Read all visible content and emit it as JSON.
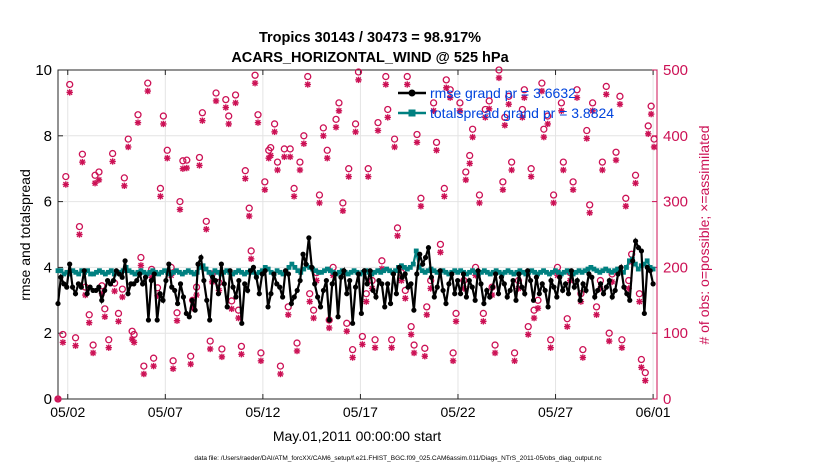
{
  "chart_data": {
    "type": "line",
    "title_line1": "Tropics 30143 / 30473 = 98.917%",
    "title_line2": "ACARS_HORIZONTAL_WIND @ 525 hPa",
    "xlabel": "May.01,2011 00:00:00 start",
    "ylabel_left": "rmse and totalspread",
    "ylabel_right": "# of obs: o=possible; ×=assimilated",
    "footer": "data file: /Users/raeder/DAI/ATM_forcXX/CAM6_setup/f.e21.FHIST_BGC.f09_025.CAM6assim.011/Diags_NTrS_2011-05/obs_diag_output.nc",
    "xlim_days": [
      0.5,
      31.2
    ],
    "ylim_left": [
      0,
      10
    ],
    "ylim_right": [
      0,
      500
    ],
    "x_ticks": [
      {
        "day": 1,
        "label": "05/02"
      },
      {
        "day": 6,
        "label": "05/07"
      },
      {
        "day": 11,
        "label": "05/12"
      },
      {
        "day": 16,
        "label": "05/17"
      },
      {
        "day": 21,
        "label": "05/22"
      },
      {
        "day": 26,
        "label": "05/27"
      },
      {
        "day": 31,
        "label": "06/01"
      }
    ],
    "y_ticks_left": [
      "0",
      "2",
      "4",
      "6",
      "8",
      "10"
    ],
    "y_ticks_right": [
      "0",
      "100",
      "200",
      "300",
      "400",
      "500"
    ],
    "colors": {
      "rmse": "#000000",
      "spread": "#008080",
      "obs": "#cc1155",
      "legend_text": "#0044dd"
    },
    "legend": [
      {
        "label": "rmse grand pr = 3.6632"
      },
      {
        "label": "totalspread grand pr = 3.8824"
      }
    ],
    "series": [
      {
        "name": "rmse grand pr = 3.6632",
        "axis": "left",
        "values": [
          2.9,
          3.7,
          3.5,
          3.4,
          4.1,
          3.4,
          3.2,
          3.5,
          3.4,
          3.9,
          3.2,
          3.4,
          3.3,
          3.3,
          3.4,
          3.0,
          3.3,
          3.6,
          3.5,
          3.6,
          3.9,
          3.8,
          3.7,
          4.2,
          3.2,
          3.5,
          3.5,
          3.6,
          3.8,
          3.5,
          3.7,
          2.4,
          3.6,
          3.8,
          2.4,
          3.2,
          3.0,
          3.6,
          4.1,
          3.4,
          3.3,
          2.9,
          3.5,
          3.1,
          2.6,
          2.5,
          3.0,
          2.7,
          4.1,
          4.3,
          3.6,
          3.0,
          2.4,
          3.7,
          3.6,
          3.2,
          4.1,
          3.5,
          2.8,
          3.9,
          3.4,
          3.1,
          3.6,
          2.3,
          3.5,
          3.3,
          3.9,
          4.0,
          3.7,
          3.2,
          3.8,
          3.9,
          2.8,
          3.2,
          3.8,
          3.5,
          3.4,
          3.1,
          3.9,
          3.8,
          2.9,
          3.1,
          3.3,
          3.6,
          4.4,
          4.1,
          4.9,
          4.0,
          3.5,
          3.1,
          2.8,
          3.3,
          3.6,
          2.4,
          3.5,
          3.8,
          2.5,
          3.7,
          3.9,
          3.2,
          3.6,
          2.3,
          3.4,
          3.8,
          2.6,
          3.9,
          3.5,
          3.9,
          3.3,
          3.1,
          3.6,
          3.5,
          2.8,
          3.5,
          2.9,
          3.8,
          3.2,
          4.0,
          3.7,
          3.8,
          3.4,
          3.5,
          2.7,
          3.8,
          4.4,
          4.1,
          4.3,
          4.6,
          3.7,
          3.1,
          3.4,
          3.9,
          3.3,
          2.9,
          3.5,
          3.8,
          3.2,
          3.6,
          3.2,
          3.8,
          3.1,
          3.6,
          3.4,
          3.0,
          3.9,
          3.5,
          2.9,
          3.3,
          3.1,
          3.4,
          3.8,
          3.2,
          3.7,
          3.5,
          3.1,
          3.3,
          3.6,
          3.0,
          3.8,
          3.4,
          3.2,
          3.9,
          3.6,
          3.0,
          3.7,
          3.2,
          3.5,
          3.3,
          2.8,
          3.6,
          3.4,
          3.1,
          3.7,
          3.3,
          3.5,
          3.2,
          3.9,
          3.4,
          3.6,
          3.0,
          3.5,
          3.3,
          3.8,
          3.7,
          3.1,
          3.3,
          3.5,
          3.2,
          3.4,
          3.6,
          3.1,
          3.3,
          3.8,
          4.0,
          3.4,
          3.2,
          3.0,
          4.2,
          4.8,
          4.6,
          4.5,
          2.6,
          4.0,
          3.9,
          3.5
        ]
      },
      {
        "name": "totalspread grand pr = 3.8824",
        "axis": "left",
        "values": [
          3.9,
          3.9,
          3.8,
          3.85,
          3.8,
          3.9,
          3.85,
          3.8,
          3.9,
          3.85,
          3.9,
          3.8,
          3.8,
          3.85,
          3.9,
          3.85,
          3.8,
          3.85,
          3.9,
          3.8,
          3.85,
          3.85,
          3.9,
          4.0,
          3.9,
          3.85,
          3.8,
          3.85,
          3.9,
          3.85,
          3.8,
          3.85,
          3.9,
          3.85,
          3.8,
          3.85,
          3.9,
          3.85,
          3.8,
          3.85,
          3.9,
          3.85,
          3.8,
          3.85,
          3.9,
          3.85,
          3.8,
          3.85,
          4.0,
          4.05,
          3.95,
          3.85,
          3.8,
          3.9,
          3.85,
          3.8,
          3.85,
          3.9,
          3.85,
          3.8,
          3.85,
          3.9,
          3.85,
          3.8,
          3.85,
          3.9,
          3.85,
          3.8,
          3.85,
          3.9,
          4.0,
          3.95,
          3.85,
          3.8,
          3.9,
          3.85,
          3.8,
          3.85,
          4.0,
          4.1,
          4.0,
          3.9,
          3.85,
          3.95,
          4.05,
          4.0,
          3.95,
          3.9,
          3.85,
          3.85,
          3.9,
          3.95,
          3.9,
          3.85,
          3.8,
          3.85,
          3.9,
          3.85,
          3.8,
          3.85,
          3.9,
          3.85,
          3.8,
          3.85,
          3.9,
          3.85,
          3.8,
          3.85,
          3.9,
          3.85,
          3.9,
          3.95,
          3.9,
          3.85,
          3.9,
          4.0,
          4.05,
          4.0,
          3.95,
          4.0,
          4.1,
          4.5,
          4.0,
          3.9,
          3.85,
          3.9,
          3.95,
          3.9,
          3.85,
          3.85,
          3.9,
          3.85,
          3.8,
          3.85,
          3.9,
          3.85,
          3.9,
          3.85,
          3.8,
          3.85,
          3.9,
          3.85,
          3.8,
          3.85,
          3.9,
          3.85,
          3.8,
          3.85,
          3.9,
          3.85,
          3.8,
          3.85,
          3.9,
          3.85,
          3.8,
          3.85,
          3.9,
          3.85,
          3.8,
          3.85,
          3.9,
          3.85,
          3.8,
          3.85,
          3.9,
          3.85,
          3.8,
          3.85,
          3.9,
          3.85,
          3.8,
          3.85,
          3.9,
          3.85,
          3.8,
          3.85,
          3.9,
          3.85,
          3.9,
          3.95,
          4.0,
          3.95,
          3.9,
          3.85,
          3.9,
          3.95,
          3.9,
          3.85,
          3.9,
          3.95,
          3.9,
          3.85,
          4.0,
          4.2,
          4.25,
          4.1,
          3.95,
          4.05,
          4.1,
          4.2,
          4.0,
          3.95
        ]
      },
      {
        "name": "possible",
        "axis": "right",
        "points": [
          [
            0.5,
            0
          ],
          [
            0.75,
            98
          ],
          [
            0.9,
            338
          ],
          [
            1.1,
            478
          ],
          [
            1.4,
            93
          ],
          [
            1.6,
            262
          ],
          [
            1.75,
            372
          ],
          [
            1.9,
            170
          ],
          [
            2.1,
            128
          ],
          [
            2.3,
            82
          ],
          [
            2.4,
            340
          ],
          [
            2.6,
            345
          ],
          [
            2.75,
            172
          ],
          [
            2.9,
            137
          ],
          [
            3.1,
            90
          ],
          [
            3.3,
            373
          ],
          [
            3.4,
            176
          ],
          [
            3.6,
            130
          ],
          [
            3.8,
            167
          ],
          [
            3.9,
            336
          ],
          [
            4.1,
            395
          ],
          [
            4.3,
            103
          ],
          [
            4.4,
            98
          ],
          [
            4.6,
            432
          ],
          [
            4.75,
            215
          ],
          [
            4.9,
            50
          ],
          [
            5.1,
            480
          ],
          [
            5.3,
            197
          ],
          [
            5.4,
            62
          ],
          [
            5.6,
            169
          ],
          [
            5.75,
            320
          ],
          [
            5.9,
            430
          ],
          [
            6.1,
            378
          ],
          [
            6.3,
            200
          ],
          [
            6.4,
            58
          ],
          [
            6.6,
            131
          ],
          [
            6.75,
            300
          ],
          [
            6.9,
            362
          ],
          [
            7.1,
            363
          ],
          [
            7.3,
            65
          ],
          [
            7.4,
            150
          ],
          [
            7.6,
            170
          ],
          [
            7.75,
            367
          ],
          [
            7.9,
            435
          ],
          [
            8.1,
            270
          ],
          [
            8.3,
            88
          ],
          [
            8.4,
            190
          ],
          [
            8.6,
            465
          ],
          [
            8.75,
            177
          ],
          [
            8.9,
            76
          ],
          [
            9.1,
            455
          ],
          [
            9.25,
            430
          ],
          [
            9.4,
            149
          ],
          [
            9.6,
            462
          ],
          [
            9.75,
            135
          ],
          [
            9.9,
            80
          ],
          [
            10.1,
            347
          ],
          [
            10.3,
            290
          ],
          [
            10.4,
            225
          ],
          [
            10.6,
            492
          ],
          [
            10.75,
            432
          ],
          [
            10.9,
            70
          ],
          [
            11.1,
            330
          ],
          [
            11.3,
            378
          ],
          [
            11.4,
            382
          ],
          [
            11.6,
            418
          ],
          [
            11.75,
            360
          ],
          [
            11.9,
            50
          ],
          [
            12.1,
            380
          ],
          [
            12.3,
            140
          ],
          [
            12.4,
            380
          ],
          [
            12.6,
            320
          ],
          [
            12.75,
            85
          ],
          [
            12.9,
            360
          ],
          [
            13.1,
            400
          ],
          [
            13.3,
            490
          ],
          [
            13.4,
            160
          ],
          [
            13.6,
            135
          ],
          [
            13.75,
            192
          ],
          [
            13.9,
            310
          ],
          [
            14.1,
            412
          ],
          [
            14.3,
            378
          ],
          [
            14.4,
            120
          ],
          [
            14.6,
            200
          ],
          [
            14.75,
            425
          ],
          [
            14.9,
            450
          ],
          [
            15.1,
            298
          ],
          [
            15.3,
            115
          ],
          [
            15.4,
            350
          ],
          [
            15.6,
            75
          ],
          [
            15.75,
            418
          ],
          [
            15.9,
            497
          ],
          [
            16.1,
            95
          ],
          [
            16.3,
            160
          ],
          [
            16.4,
            350
          ],
          [
            16.6,
            180
          ],
          [
            16.75,
            90
          ],
          [
            16.9,
            420
          ],
          [
            17.1,
            210
          ],
          [
            17.3,
            490
          ],
          [
            17.4,
            440
          ],
          [
            17.6,
            90
          ],
          [
            17.75,
            395
          ],
          [
            17.9,
            260
          ],
          [
            18.1,
            192
          ],
          [
            18.3,
            165
          ],
          [
            18.4,
            490
          ],
          [
            18.6,
            110
          ],
          [
            18.75,
            82
          ],
          [
            18.9,
            402
          ],
          [
            19.1,
            305
          ],
          [
            19.3,
            77
          ],
          [
            19.4,
            140
          ],
          [
            19.6,
            180
          ],
          [
            19.75,
            450
          ],
          [
            19.9,
            390
          ],
          [
            20.1,
            235
          ],
          [
            20.3,
            320
          ],
          [
            20.4,
            485
          ],
          [
            20.6,
            470
          ],
          [
            20.75,
            70
          ],
          [
            20.9,
            130
          ],
          [
            21.1,
            450
          ],
          [
            21.3,
            180
          ],
          [
            21.4,
            345
          ],
          [
            21.6,
            370
          ],
          [
            21.75,
            410
          ],
          [
            21.9,
            200
          ],
          [
            22.1,
            310
          ],
          [
            22.3,
            130
          ],
          [
            22.4,
            440
          ],
          [
            22.6,
            453
          ],
          [
            22.75,
            170
          ],
          [
            22.9,
            82
          ],
          [
            23.1,
            500
          ],
          [
            23.3,
            330
          ],
          [
            23.4,
            428
          ],
          [
            23.6,
            460
          ],
          [
            23.75,
            360
          ],
          [
            23.9,
            70
          ],
          [
            24.1,
            180
          ],
          [
            24.3,
            440
          ],
          [
            24.4,
            470
          ],
          [
            24.6,
            110
          ],
          [
            24.75,
            350
          ],
          [
            24.9,
            135
          ],
          [
            25.1,
            150
          ],
          [
            25.3,
            480
          ],
          [
            25.4,
            410
          ],
          [
            25.6,
            430
          ],
          [
            25.75,
            90
          ],
          [
            25.9,
            310
          ],
          [
            26.1,
            200
          ],
          [
            26.3,
            450
          ],
          [
            26.4,
            360
          ],
          [
            26.6,
            122
          ],
          [
            26.75,
            192
          ],
          [
            26.9,
            330
          ],
          [
            27.1,
            470
          ],
          [
            27.3,
            160
          ],
          [
            27.4,
            75
          ],
          [
            27.6,
            408
          ],
          [
            27.75,
            295
          ],
          [
            27.9,
            450
          ],
          [
            28.1,
            140
          ],
          [
            28.3,
            180
          ],
          [
            28.4,
            360
          ],
          [
            28.6,
            475
          ],
          [
            28.75,
            100
          ],
          [
            28.9,
            190
          ],
          [
            29.1,
            375
          ],
          [
            29.3,
            460
          ],
          [
            29.4,
            90
          ],
          [
            29.6,
            305
          ],
          [
            29.75,
            180
          ],
          [
            29.9,
            220
          ],
          [
            30.1,
            340
          ],
          [
            30.3,
            160
          ],
          [
            30.4,
            60
          ],
          [
            30.6,
            40
          ],
          [
            30.75,
            415
          ],
          [
            30.9,
            445
          ],
          [
            31.05,
            395
          ]
        ]
      }
    ]
  }
}
